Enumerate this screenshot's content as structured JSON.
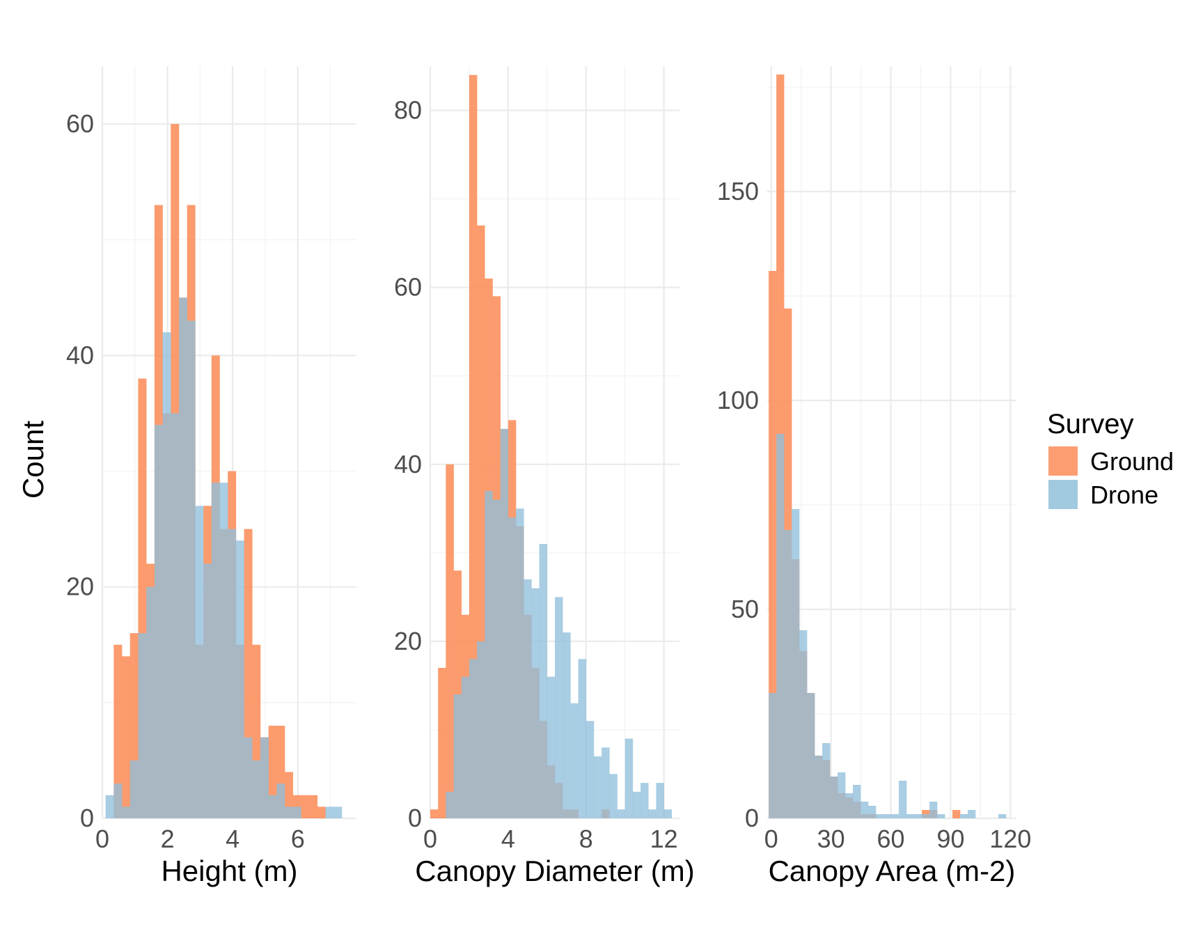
{
  "chart_data": {
    "y_axis_label": "Count",
    "legend": {
      "title": "Survey",
      "position": "right",
      "items": [
        {
          "label": "Ground",
          "color": "#fc8d59"
        },
        {
          "label": "Drone",
          "color": "#91bfdb"
        }
      ]
    },
    "panels": [
      {
        "type": "bar",
        "subtype": "histogram-overlay",
        "xlabel": "Height (m)",
        "ylabel": "Count",
        "xlim": [
          0,
          7.8
        ],
        "ylim": [
          0,
          65
        ],
        "x_ticks": [
          "0",
          "2",
          "4",
          "6"
        ],
        "x_tick_values": [
          0,
          2,
          4,
          6
        ],
        "y_ticks": [
          "0",
          "20",
          "40",
          "60"
        ],
        "y_tick_values": [
          0,
          20,
          40,
          60
        ],
        "bin_start": 0.1,
        "bin_width": 0.25,
        "series": [
          {
            "name": "Ground",
            "values": [
              0,
              15,
              14,
              16,
              38,
              22,
              53,
              35,
              60,
              45,
              53,
              15,
              27,
              40,
              25,
              30,
              15,
              25,
              15,
              7,
              8,
              8,
              4,
              2,
              2,
              2,
              1,
              0,
              0,
              0,
              0
            ]
          },
          {
            "name": "Drone",
            "values": [
              2,
              3,
              1,
              5,
              16,
              20,
              34,
              42,
              35,
              45,
              43,
              27,
              22,
              29,
              29,
              25,
              24,
              7,
              5,
              7,
              2,
              3,
              1,
              1,
              0,
              0,
              0,
              1,
              1,
              0,
              0
            ]
          }
        ]
      },
      {
        "type": "bar",
        "subtype": "histogram-overlay",
        "xlabel": "Canopy Diameter (m)",
        "ylabel": "Count",
        "xlim": [
          0,
          12.8
        ],
        "ylim": [
          0,
          85
        ],
        "x_ticks": [
          "0",
          "4",
          "8",
          "12"
        ],
        "x_tick_values": [
          0,
          4,
          8,
          12
        ],
        "y_ticks": [
          "0",
          "20",
          "40",
          "60",
          "80"
        ],
        "y_tick_values": [
          0,
          20,
          40,
          60,
          80
        ],
        "bin_start": 0,
        "bin_width": 0.4,
        "series": [
          {
            "name": "Ground",
            "values": [
              1,
              17,
              40,
              28,
              23,
              84,
              67,
              61,
              59,
              44,
              45,
              33,
              23,
              17,
              11,
              6,
              4,
              1,
              1,
              0,
              0,
              0,
              1,
              0,
              0,
              0,
              0,
              0,
              0,
              0,
              0
            ]
          },
          {
            "name": "Drone",
            "values": [
              0,
              0,
              3,
              14,
              16,
              18,
              20,
              37,
              36,
              44,
              34,
              35,
              27,
              26,
              31,
              16,
              25,
              21,
              13,
              18,
              11,
              7,
              8,
              5,
              1,
              9,
              3,
              4,
              1,
              4,
              1
            ]
          }
        ]
      },
      {
        "type": "bar",
        "subtype": "histogram-overlay",
        "xlabel": "Canopy Area (m-2)",
        "ylabel": "Count",
        "xlim": [
          -2,
          123
        ],
        "ylim": [
          0,
          180
        ],
        "x_ticks": [
          "0",
          "30",
          "60",
          "90",
          "120"
        ],
        "x_tick_values": [
          0,
          30,
          60,
          90,
          120
        ],
        "y_ticks": [
          "0",
          "50",
          "100",
          "150"
        ],
        "y_tick_values": [
          0,
          50,
          100,
          150
        ],
        "bin_start": -1.25,
        "bin_width": 3.84,
        "series": [
          {
            "name": "Ground",
            "values": [
              131,
              178,
              122,
              62,
              40,
              30,
              15,
              14,
              10,
              6,
              5,
              4,
              1,
              1,
              0,
              0,
              0,
              0,
              0,
              0,
              2,
              2,
              0,
              0,
              2,
              0,
              0,
              0,
              0,
              0,
              0
            ]
          },
          {
            "name": "Drone",
            "values": [
              30,
              92,
              69,
              74,
              45,
              30,
              15,
              18,
              10,
              11,
              6,
              8,
              4,
              3,
              1,
              1,
              1,
              9,
              1,
              1,
              1,
              4,
              1,
              0,
              0,
              1,
              2,
              0,
              0,
              0,
              1
            ]
          }
        ]
      }
    ]
  }
}
